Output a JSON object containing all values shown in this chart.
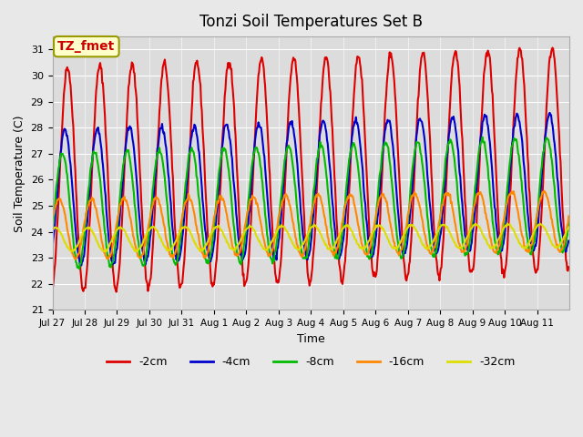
{
  "title": "Tonzi Soil Temperatures Set B",
  "xlabel": "Time",
  "ylabel": "Soil Temperature (C)",
  "ylim": [
    21.0,
    31.5
  ],
  "yticks": [
    21.0,
    22.0,
    23.0,
    24.0,
    25.0,
    26.0,
    27.0,
    28.0,
    29.0,
    30.0,
    31.0
  ],
  "background_color": "#e8e8e8",
  "plot_bg_color": "#dcdcdc",
  "annotation_text": "TZ_fmet",
  "annotation_color": "#cc0000",
  "annotation_bg": "#ffffcc",
  "annotation_border": "#999900",
  "series": [
    {
      "label": "-2cm",
      "color": "#dd0000",
      "lw": 1.5
    },
    {
      "label": "-4cm",
      "color": "#0000cc",
      "lw": 1.5
    },
    {
      "label": "-8cm",
      "color": "#00bb00",
      "lw": 1.5
    },
    {
      "label": "-16cm",
      "color": "#ff8800",
      "lw": 1.5
    },
    {
      "label": "-32cm",
      "color": "#dddd00",
      "lw": 1.5
    }
  ],
  "x_tick_labels": [
    "Jul 27",
    "Jul 28",
    "Jul 29",
    "Jul 30",
    "Jul 31",
    "Aug 1",
    "Aug 2",
    "Aug 3",
    "Aug 4",
    "Aug 5",
    "Aug 6",
    "Aug 7",
    "Aug 8",
    "Aug 9",
    "Aug 10",
    "Aug 11"
  ],
  "num_days": 16,
  "points_per_day": 48
}
